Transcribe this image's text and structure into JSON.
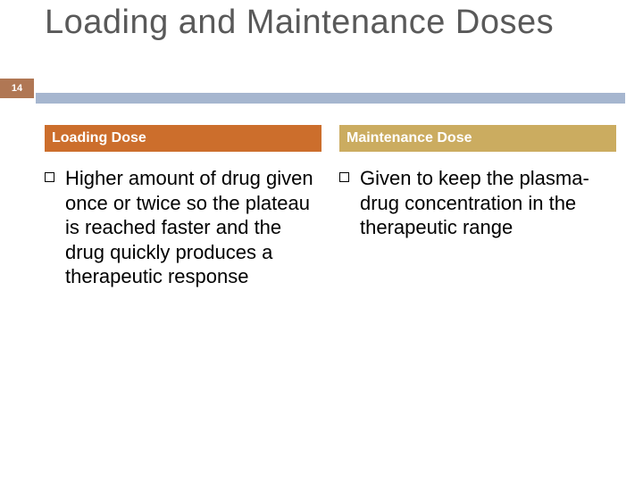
{
  "page_number": "14",
  "title": "Loading and Maintenance Doses",
  "colors": {
    "badge_bg": "#b07754",
    "underline": "#a6b6cf",
    "left_header_bg": "#cc6e2c",
    "right_header_bg": "#cbac60",
    "title_color": "#595959",
    "body_text": "#000000",
    "white": "#ffffff"
  },
  "left": {
    "header": "Loading Dose",
    "bullet": "Higher amount of drug given once or twice so the plateau is reached faster and the drug quickly produces a therapeutic response"
  },
  "right": {
    "header": "Maintenance Dose",
    "bullet": "Given to keep the plasma-drug concentration in the therapeutic range"
  }
}
